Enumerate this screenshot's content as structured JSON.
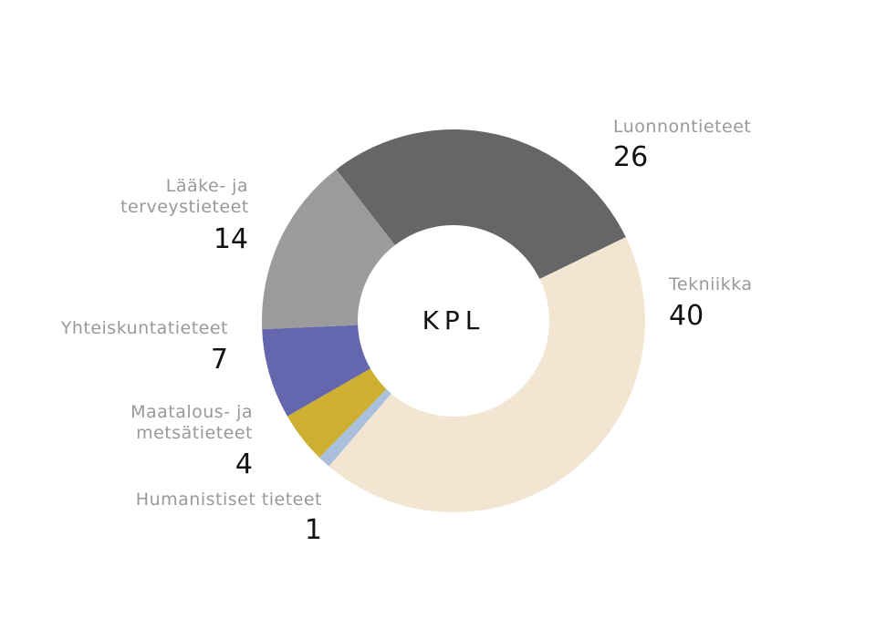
{
  "chart_data": {
    "type": "donut",
    "center_label": "KPL",
    "categories": [
      "Luonnontieteet",
      "Tekniikka",
      "Humanistiset tieteet",
      "Maatalous- ja metsätieteet",
      "Yhteiskuntatieteet",
      "Lääke- ja terveystieteet"
    ],
    "values": [
      26,
      40,
      1,
      4,
      7,
      14
    ],
    "colors": [
      "#666666",
      "#f2e6d2",
      "#a9bfdc",
      "#cdb031",
      "#6466ae",
      "#9b9b9b"
    ]
  }
}
